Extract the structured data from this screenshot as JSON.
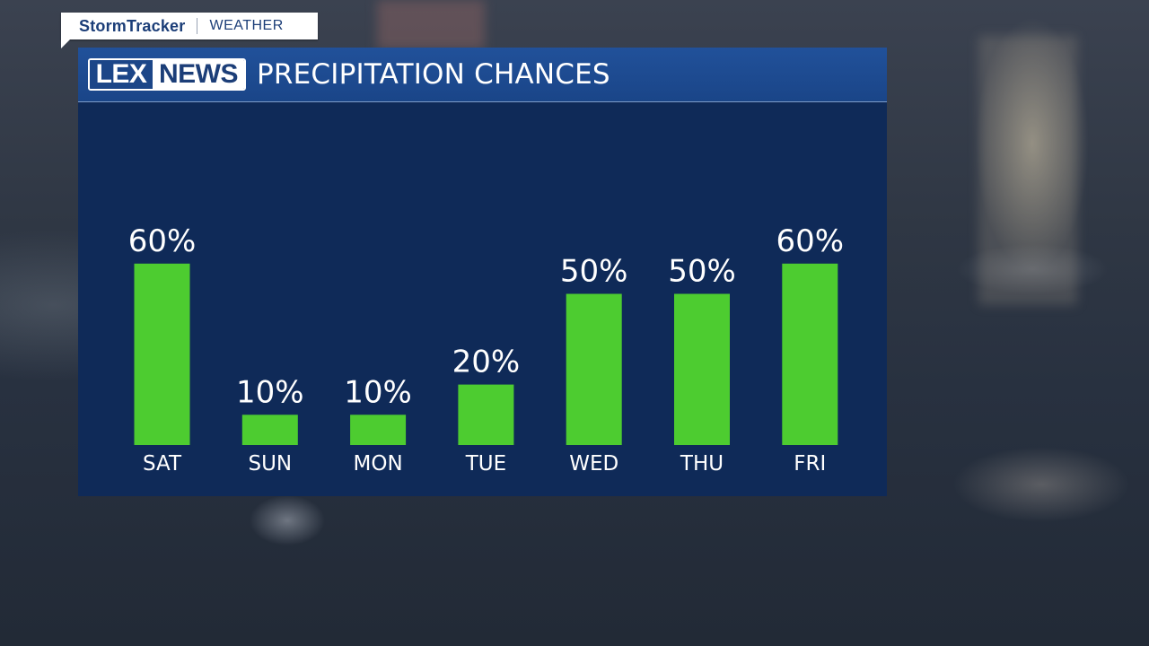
{
  "stormtracker": {
    "brand": "StormTracker",
    "section": "WEATHER"
  },
  "header": {
    "logo_left": "LEX",
    "logo_right": "NEWS",
    "title": "PRECIPITATION CHANCES"
  },
  "colors": {
    "bar": "#4dcc30",
    "panel": "#0f2a58",
    "header": "#1f4c93"
  },
  "chart_data": {
    "type": "bar",
    "title": "PRECIPITATION CHANCES",
    "categories": [
      "SAT",
      "SUN",
      "MON",
      "TUE",
      "WED",
      "THU",
      "FRI"
    ],
    "values": [
      60,
      10,
      10,
      20,
      50,
      50,
      60
    ],
    "value_labels": [
      "60%",
      "10%",
      "10%",
      "20%",
      "50%",
      "50%",
      "60%"
    ],
    "unit": "%",
    "ylim": [
      0,
      70
    ],
    "grid": false,
    "legend": "none"
  }
}
